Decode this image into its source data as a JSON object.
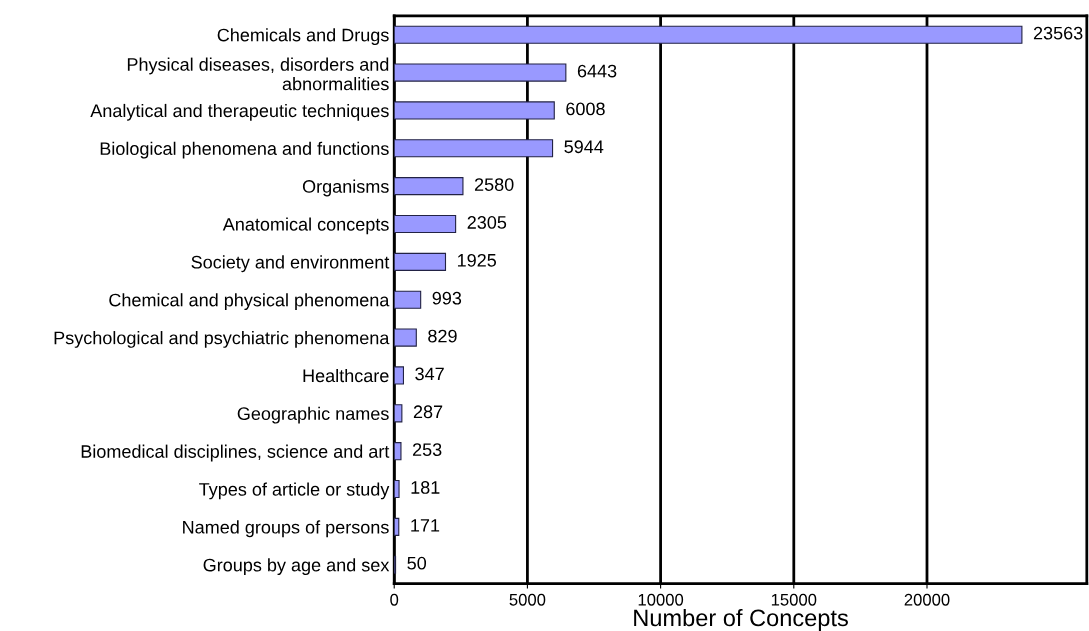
{
  "chart_data": {
    "type": "bar",
    "orientation": "horizontal",
    "xlabel": "Number of Concepts",
    "categories": [
      "Chemicals and Drugs",
      "Physical diseases, disorders and\nabnormalities",
      "Analytical and therapeutic techniques",
      "Biological phenomena and functions",
      "Organisms",
      "Anatomical concepts",
      "Society and environment",
      "Chemical and physical phenomena",
      "Psychological and psychiatric phenomena",
      "Healthcare",
      "Geographic names",
      "Biomedical disciplines, science and art",
      "Types of article or study",
      "Named groups of persons",
      "Groups by age and sex"
    ],
    "values": [
      23563,
      6443,
      6008,
      5944,
      2580,
      2305,
      1925,
      993,
      829,
      347,
      287,
      253,
      181,
      171,
      50
    ],
    "color": "#9999ff",
    "data_labels": true,
    "xlim": [
      0,
      26000
    ],
    "xticks": [
      0,
      5000,
      10000,
      15000,
      20000
    ],
    "grid": "x",
    "legend": false
  }
}
